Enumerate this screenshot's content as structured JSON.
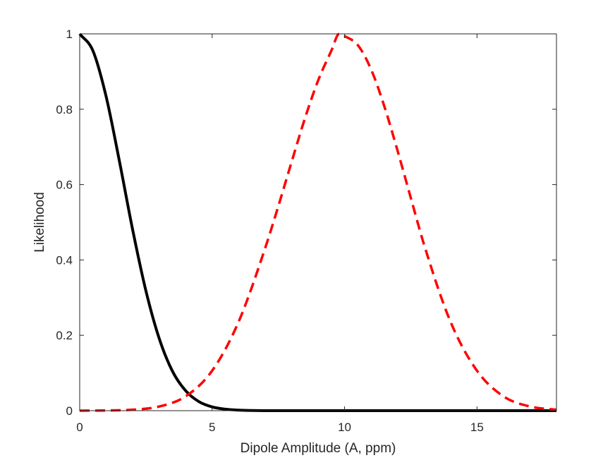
{
  "chart_data": {
    "type": "line",
    "title": "",
    "xlabel": "Dipole Amplitude (A, ppm)",
    "ylabel": "Likelihood",
    "xlim": [
      0,
      18
    ],
    "ylim": [
      0,
      1
    ],
    "xticks": [
      0,
      5,
      10,
      15
    ],
    "yticks": [
      0,
      0.2,
      0.4,
      0.6,
      0.8,
      1
    ],
    "xtick_labels": [
      "0",
      "5",
      "10",
      "15"
    ],
    "ytick_labels": [
      "0",
      "0.2",
      "0.4",
      "0.6",
      "0.8",
      "1"
    ],
    "grid": false,
    "legend": "none",
    "series": [
      {
        "color": "#000000",
        "style": "solid",
        "x": [
          0,
          0.5,
          1,
          1.5,
          2,
          2.5,
          3,
          3.5,
          4,
          4.5,
          5,
          5.5,
          6,
          6.5,
          7,
          8,
          9,
          10,
          12,
          14,
          16,
          18
        ],
        "y": [
          1.0,
          0.955,
          0.833,
          0.662,
          0.48,
          0.318,
          0.192,
          0.105,
          0.053,
          0.024,
          0.01,
          0.004,
          0.0014,
          0.0004,
          0.0001,
          0,
          0,
          0,
          0,
          0,
          0,
          0
        ]
      },
      {
        "color": "#ff0000",
        "style": "dashed",
        "x": [
          0,
          1,
          2,
          3,
          4,
          5,
          6,
          7,
          7.5,
          8,
          8.5,
          9,
          9.5,
          9.8,
          10,
          10.5,
          11,
          11.5,
          12,
          12.5,
          13,
          14,
          15,
          16,
          17,
          18
        ],
        "y": [
          0.0001,
          0.0005,
          0.0025,
          0.011,
          0.038,
          0.106,
          0.236,
          0.431,
          0.543,
          0.66,
          0.775,
          0.876,
          0.955,
          1.0,
          0.994,
          0.97,
          0.906,
          0.808,
          0.69,
          0.565,
          0.441,
          0.236,
          0.106,
          0.038,
          0.011,
          0.0025
        ]
      }
    ]
  }
}
